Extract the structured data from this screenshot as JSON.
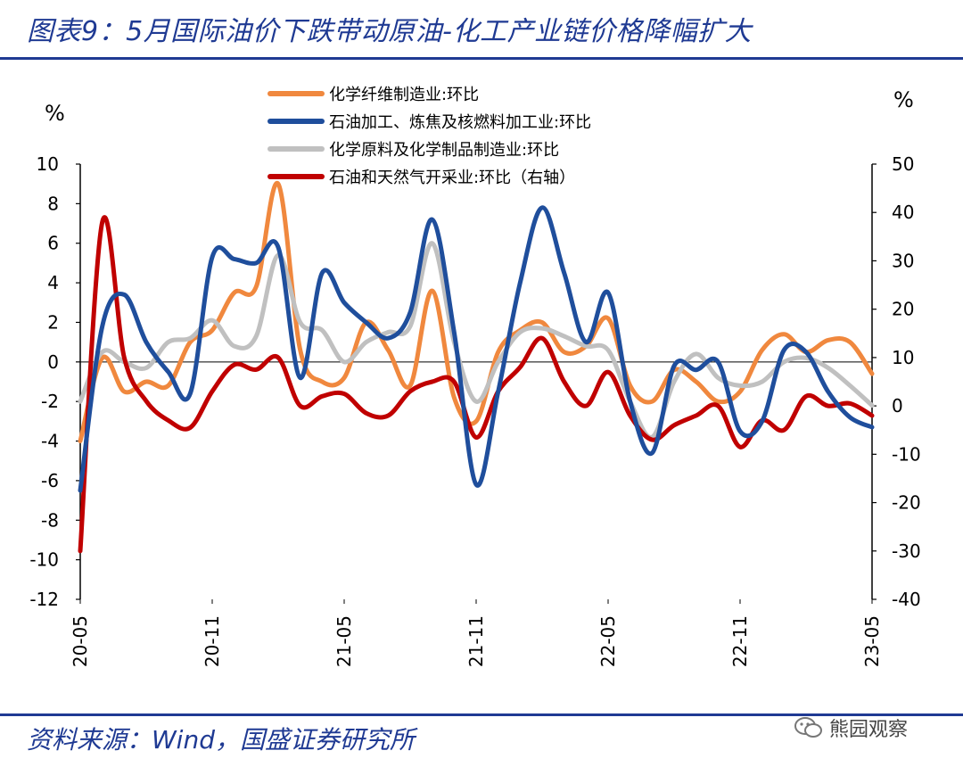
{
  "title": "图表9：5月国际油价下跌带动原油-化工产业链价格降幅扩大",
  "source": "资料来源：Wind，国盛证券研究所",
  "watermark": "熊园观察",
  "chart_data": {
    "type": "line",
    "left_axis_unit": "%",
    "right_axis_unit": "%",
    "ylim_left": [
      -12,
      10
    ],
    "ylim_right": [
      -40,
      50
    ],
    "yticks_left": [
      10,
      8,
      6,
      4,
      2,
      0,
      -2,
      -4,
      -6,
      -8,
      -10,
      -12
    ],
    "yticks_right": [
      50,
      40,
      30,
      20,
      10,
      0,
      -10,
      -20,
      -30,
      -40
    ],
    "xtick_labels": [
      "20-05",
      "20-11",
      "21-05",
      "21-11",
      "22-05",
      "22-11",
      "23-05"
    ],
    "x_months": [
      "2020-05",
      "2020-06",
      "2020-07",
      "2020-08",
      "2020-09",
      "2020-10",
      "2020-11",
      "2020-12",
      "2021-01",
      "2021-02",
      "2021-03",
      "2021-04",
      "2021-05",
      "2021-06",
      "2021-07",
      "2021-08",
      "2021-09",
      "2021-10",
      "2021-11",
      "2021-12",
      "2022-01",
      "2022-02",
      "2022-03",
      "2022-04",
      "2022-05",
      "2022-06",
      "2022-07",
      "2022-08",
      "2022-09",
      "2022-10",
      "2022-11",
      "2022-12",
      "2023-01",
      "2023-02",
      "2023-03",
      "2023-04",
      "2023-05"
    ],
    "legend_position": "top-center",
    "series": [
      {
        "name": "化学纤维制造业:环比",
        "color": "#f0883e",
        "axis": "left",
        "values": [
          -4.0,
          0.2,
          -1.5,
          -1.0,
          -1.2,
          1.0,
          1.6,
          3.5,
          3.8,
          9.0,
          0.6,
          -1.0,
          -0.8,
          2.0,
          0.6,
          -1.2,
          3.6,
          -1.8,
          -3.0,
          0.5,
          1.6,
          2.0,
          0.5,
          0.8,
          2.2,
          -1.2,
          -2.0,
          -0.4,
          -1.0,
          -2.0,
          -1.5,
          0.6,
          1.4,
          0.5,
          1.1,
          1.0,
          -0.6
        ]
      },
      {
        "name": "石油加工、炼焦及核燃料加工业:环比",
        "color": "#1f4e9c",
        "axis": "left",
        "values": [
          -6.5,
          1.8,
          3.4,
          1.0,
          -0.5,
          -1.6,
          5.3,
          5.2,
          5.0,
          5.8,
          -0.8,
          4.5,
          3.0,
          2.0,
          1.2,
          2.5,
          7.2,
          1.5,
          -6.2,
          -1.5,
          4.0,
          7.8,
          4.5,
          1.0,
          3.5,
          -2.0,
          -4.6,
          -0.2,
          -0.4,
          0.0,
          -3.5,
          -3.0,
          0.6,
          0.5,
          -1.5,
          -2.8,
          -3.3
        ]
      },
      {
        "name": "化学原料及化学制品制造业:环比",
        "color": "#c0c0c0",
        "axis": "left",
        "values": [
          -2.0,
          0.5,
          0.0,
          -0.3,
          1.0,
          1.2,
          2.1,
          0.8,
          1.3,
          5.4,
          2.0,
          1.6,
          0.0,
          1.0,
          1.5,
          1.8,
          6.0,
          1.0,
          -2.0,
          0.0,
          1.5,
          1.7,
          1.3,
          0.8,
          0.6,
          -2.0,
          -3.8,
          -1.0,
          0.4,
          -0.8,
          -1.2,
          -1.0,
          0.0,
          0.2,
          -0.3,
          -1.2,
          -2.2
        ]
      },
      {
        "name": "石油和天然气开采业:环比（右轴）",
        "color": "#c00000",
        "axis": "right",
        "values": [
          -30.0,
          38.0,
          10.0,
          1.0,
          -3.0,
          -4.5,
          3.0,
          8.5,
          7.5,
          10.0,
          0.0,
          2.0,
          2.5,
          -1.5,
          -2.0,
          3.0,
          5.0,
          5.0,
          -6.5,
          3.0,
          8.0,
          14.0,
          5.0,
          0.0,
          7.0,
          -2.0,
          -7.0,
          -4.0,
          -2.0,
          0.0,
          -8.5,
          -3.0,
          -5.0,
          2.0,
          0.0,
          0.5,
          -2.0
        ]
      }
    ]
  }
}
